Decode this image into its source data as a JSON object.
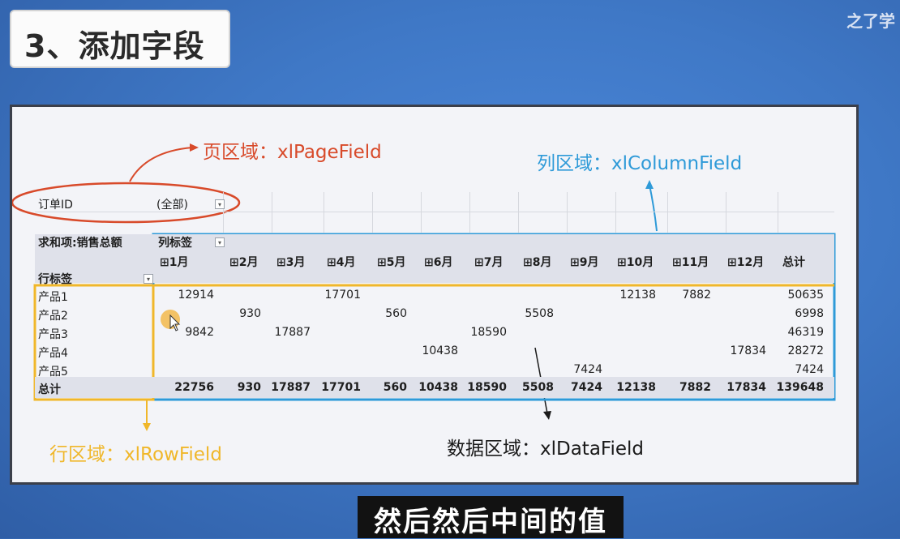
{
  "title": "3、添加字段",
  "brand": "之了学",
  "subtitle": "然后然后中间的值",
  "annotations": {
    "page": "页区域：xlPageField",
    "column": "列区域：xlColumnField",
    "row": "行区域：xlRowField",
    "data": "数据区域：xlDataField"
  },
  "pivot": {
    "page_field_label": "订单ID",
    "page_field_value": "(全部)",
    "values_label": "求和项:销售总额",
    "col_labels_header": "列标签",
    "row_labels_header": "行标签",
    "months": [
      "⊞1月",
      "⊞2月",
      "⊞3月",
      "⊞4月",
      "⊞5月",
      "⊞6月",
      "⊞7月",
      "⊞8月",
      "⊞9月",
      "⊞10月",
      "⊞11月",
      "⊞12月"
    ],
    "grand_total_label": "总计",
    "rows": [
      {
        "name": "产品1",
        "values": [
          "12914",
          "",
          "",
          "17701",
          "",
          "",
          "",
          "",
          "",
          "12138",
          "7882",
          ""
        ],
        "total": "50635"
      },
      {
        "name": "产品2",
        "values": [
          "",
          "930",
          "",
          "",
          "560",
          "",
          "",
          "5508",
          "",
          "",
          "",
          ""
        ],
        "total": "6998"
      },
      {
        "name": "产品3",
        "values": [
          "9842",
          "",
          "17887",
          "",
          "",
          "",
          "18590",
          "",
          "",
          "",
          "",
          ""
        ],
        "total": "46319"
      },
      {
        "name": "产品4",
        "values": [
          "",
          "",
          "",
          "",
          "",
          "10438",
          "",
          "",
          "",
          "",
          "",
          "17834"
        ],
        "total": "28272"
      },
      {
        "name": "产品5",
        "values": [
          "",
          "",
          "",
          "",
          "",
          "",
          "",
          "",
          "7424",
          "",
          "",
          ""
        ],
        "total": "7424"
      }
    ],
    "totals": {
      "name": "总计",
      "values": [
        "22756",
        "930",
        "17887",
        "17701",
        "560",
        "10438",
        "18590",
        "5508",
        "7424",
        "12138",
        "7882",
        "17834"
      ],
      "total": "139648"
    }
  },
  "colors": {
    "page_annotation": "#d84a2a",
    "column_annotation": "#2e9ad8",
    "row_annotation": "#f0b72a",
    "background": "#3f78c6"
  }
}
